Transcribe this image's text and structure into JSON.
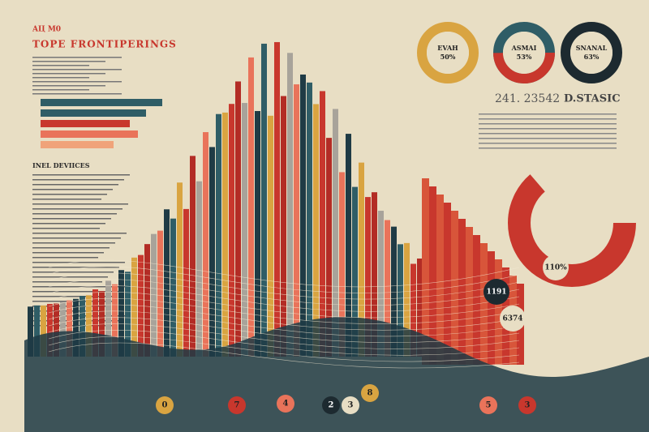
{
  "header": {
    "tag": "AЦ M0",
    "title": "TOPE FRONTIPERINGS"
  },
  "section": {
    "title": "INEL DEVIICES"
  },
  "donuts": [
    {
      "label": "EVAH",
      "value": "50%"
    },
    {
      "label": "ASMAI",
      "value": "53%"
    },
    {
      "label": "SNANAL",
      "value": "63%"
    }
  ],
  "stats": {
    "number": "241. 23542",
    "title": "D.STASIC"
  },
  "callouts": [
    "110%",
    "1191",
    "6374"
  ],
  "circles": [
    "0",
    "7",
    "4",
    "2",
    "3",
    "8",
    "5",
    "3"
  ]
}
